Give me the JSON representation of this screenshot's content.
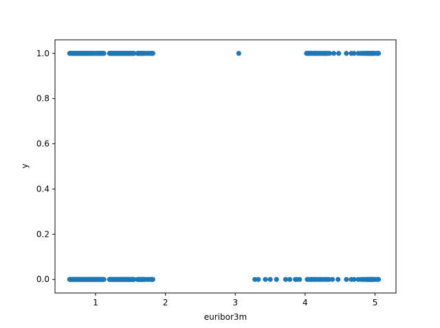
{
  "chart_data": {
    "type": "scatter",
    "title": "",
    "xlabel": "euribor3m",
    "ylabel": "y",
    "xlim": [
      0.42,
      5.3
    ],
    "ylim": [
      -0.06,
      1.06
    ],
    "xticks": [
      1,
      2,
      3,
      4,
      5
    ],
    "xtick_labels": [
      "1",
      "2",
      "3",
      "4",
      "5"
    ],
    "yticks": [
      0.0,
      0.2,
      0.4,
      0.6,
      0.8,
      1.0
    ],
    "ytick_labels": [
      "0.0",
      "0.2",
      "0.4",
      "0.6",
      "0.8",
      "1.0"
    ],
    "grid": false,
    "marker_color": "#1f77b4",
    "series": [
      {
        "values_y1_x": [
          0.63,
          0.64,
          0.65,
          0.66,
          0.67,
          0.68,
          0.69,
          0.7,
          0.71,
          0.72,
          0.73,
          0.74,
          0.75,
          0.76,
          0.77,
          0.78,
          0.79,
          0.8,
          0.81,
          0.82,
          0.83,
          0.84,
          0.85,
          0.86,
          0.87,
          0.88,
          0.89,
          0.9,
          0.91,
          0.92,
          0.93,
          0.94,
          0.95,
          0.96,
          0.97,
          0.98,
          1.0,
          1.01,
          1.02,
          1.03,
          1.04,
          1.05,
          1.06,
          1.07,
          1.08,
          1.09,
          1.1,
          1.11,
          1.12,
          1.2,
          1.21,
          1.22,
          1.23,
          1.24,
          1.25,
          1.26,
          1.27,
          1.28,
          1.29,
          1.3,
          1.31,
          1.32,
          1.33,
          1.34,
          1.35,
          1.36,
          1.37,
          1.38,
          1.39,
          1.4,
          1.41,
          1.42,
          1.43,
          1.44,
          1.45,
          1.46,
          1.47,
          1.48,
          1.49,
          1.5,
          1.51,
          1.52,
          1.53,
          1.54,
          1.55,
          1.6,
          1.61,
          1.62,
          1.63,
          1.64,
          1.65,
          1.66,
          1.67,
          1.68,
          1.69,
          1.7,
          1.72,
          1.75,
          1.77,
          1.79,
          1.8,
          1.81,
          1.82,
          3.05,
          4.02,
          4.03,
          4.04,
          4.05,
          4.06,
          4.07,
          4.08,
          4.1,
          4.12,
          4.14,
          4.15,
          4.16,
          4.18,
          4.19,
          4.2,
          4.22,
          4.24,
          4.26,
          4.28,
          4.29,
          4.3,
          4.32,
          4.35,
          4.41,
          4.48,
          4.59,
          4.66,
          4.7,
          4.76,
          4.8,
          4.82,
          4.84,
          4.86,
          4.87,
          4.89,
          4.9,
          4.91,
          4.92,
          4.93,
          4.94,
          4.95,
          4.96,
          4.97,
          4.98,
          5.0,
          5.03,
          5.04,
          5.05
        ],
        "values_y0_x": [
          0.63,
          0.64,
          0.65,
          0.66,
          0.67,
          0.68,
          0.69,
          0.7,
          0.71,
          0.72,
          0.73,
          0.74,
          0.75,
          0.76,
          0.77,
          0.78,
          0.79,
          0.8,
          0.81,
          0.82,
          0.83,
          0.84,
          0.85,
          0.86,
          0.87,
          0.88,
          0.89,
          0.9,
          0.91,
          0.92,
          0.93,
          0.94,
          0.95,
          0.96,
          0.97,
          0.98,
          0.99,
          1.0,
          1.01,
          1.02,
          1.03,
          1.04,
          1.05,
          1.06,
          1.07,
          1.08,
          1.09,
          1.1,
          1.11,
          1.12,
          1.2,
          1.21,
          1.22,
          1.23,
          1.24,
          1.25,
          1.26,
          1.27,
          1.28,
          1.29,
          1.3,
          1.31,
          1.32,
          1.33,
          1.34,
          1.35,
          1.36,
          1.37,
          1.38,
          1.39,
          1.4,
          1.41,
          1.42,
          1.43,
          1.44,
          1.45,
          1.46,
          1.47,
          1.48,
          1.49,
          1.5,
          1.51,
          1.52,
          1.53,
          1.54,
          1.55,
          1.6,
          1.61,
          1.62,
          1.63,
          1.64,
          1.65,
          1.66,
          1.67,
          1.68,
          1.69,
          1.7,
          1.72,
          1.75,
          1.77,
          1.79,
          1.8,
          1.81,
          1.82,
          3.28,
          3.33,
          3.43,
          3.5,
          3.59,
          3.72,
          3.78,
          3.86,
          3.88,
          3.92,
          4.03,
          4.05,
          4.08,
          4.1,
          4.12,
          4.14,
          4.16,
          4.19,
          4.21,
          4.23,
          4.26,
          4.29,
          4.31,
          4.34,
          4.39,
          4.47,
          4.59,
          4.66,
          4.7,
          4.76,
          4.8,
          4.82,
          4.84,
          4.86,
          4.87,
          4.89,
          4.9,
          4.91,
          4.92,
          4.93,
          4.94,
          4.95,
          4.96,
          4.97,
          4.98,
          5.0,
          5.03,
          5.04,
          5.05
        ]
      }
    ]
  }
}
